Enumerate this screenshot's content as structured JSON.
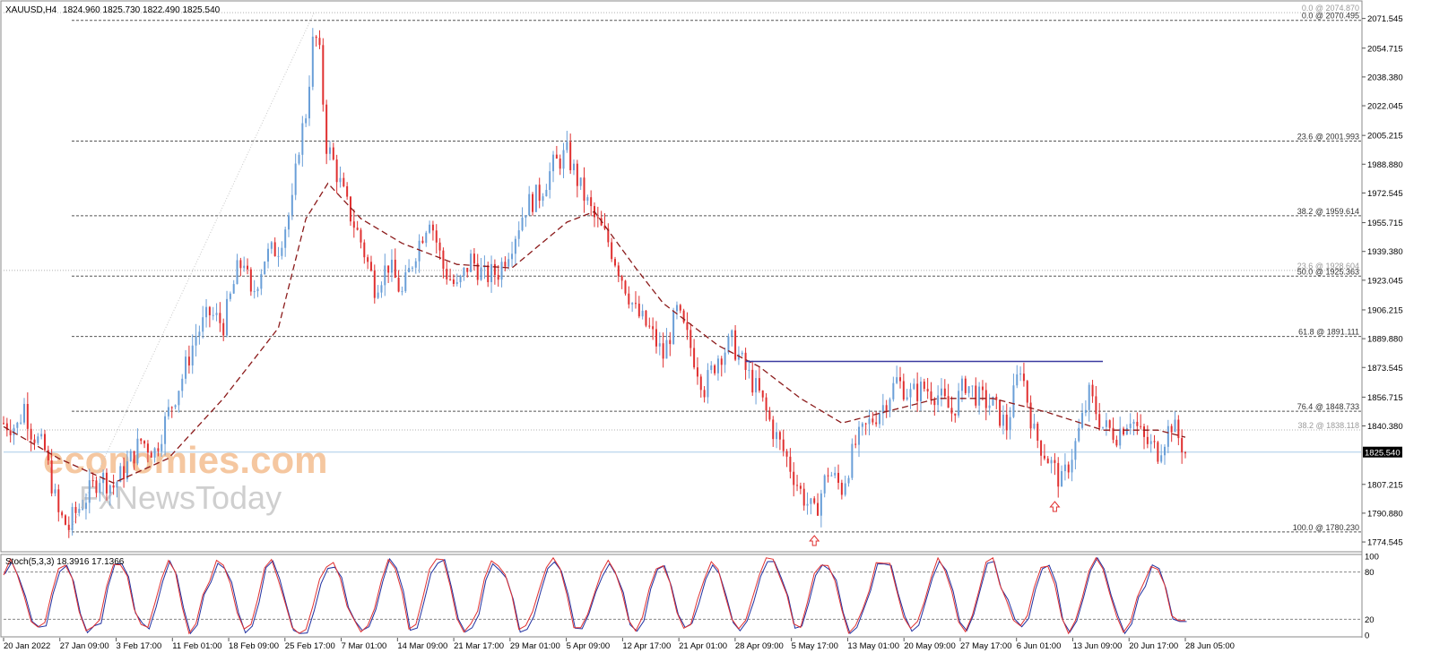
{
  "header": {
    "symbol": "XAUUSD,H4",
    "ohlc": "1824.960 1825.730 1822.490 1825.540"
  },
  "watermark": {
    "line1": "economies.com",
    "line2": "FxNewsToday"
  },
  "price_axis": {
    "ticks": [
      "2071.545",
      "2054.715",
      "2038.380",
      "2022.045",
      "2005.215",
      "1988.880",
      "1972.545",
      "1955.715",
      "1939.380",
      "1923.045",
      "1906.215",
      "1889.880",
      "1873.545",
      "1856.715",
      "1840.380",
      "1825.540",
      "1807.215",
      "1790.880",
      "1774.545"
    ],
    "current_price_label": "1825.540"
  },
  "fib_labels": [
    {
      "text": "0.0 @ 2074.870",
      "faded": true
    },
    {
      "text": "0.0 @ 2070.495",
      "faded": false
    },
    {
      "text": "23.6 @ 2001.993",
      "faded": false
    },
    {
      "text": "38.2 @ 1959.614",
      "faded": false
    },
    {
      "text": "23.6 @ 1928.604",
      "faded": true
    },
    {
      "text": "50.0 @ 1925.363",
      "faded": false
    },
    {
      "text": "61.8 @ 1891.111",
      "faded": false
    },
    {
      "text": "76.4 @ 1848.733",
      "faded": false
    },
    {
      "text": "38.2 @ 1838.118",
      "faded": true
    },
    {
      "text": "100.0 @ 1780.230",
      "faded": false
    }
  ],
  "indicator": {
    "label": "Stoch(5,3,3) 18.3916 17.1366",
    "ticks": [
      "100",
      "80",
      "20",
      "0"
    ]
  },
  "time_axis": {
    "labels": [
      "20 Jan 2022",
      "27 Jan 09:00",
      "3 Feb 17:00",
      "11 Feb 01:00",
      "18 Feb 09:00",
      "25 Feb 17:00",
      "7 Mar 01:00",
      "14 Mar 09:00",
      "21 Mar 17:00",
      "29 Mar 01:00",
      "5 Apr 09:00",
      "12 Apr 17:00",
      "21 Apr 01:00",
      "28 Apr 09:00",
      "5 May 17:00",
      "13 May 01:00",
      "20 May 09:00",
      "27 May 17:00",
      "6 Jun 01:00",
      "13 Jun 09:00",
      "20 Jun 17:00",
      "28 Jun 05:00"
    ]
  },
  "colors": {
    "bull_candle": "#6a9fd8",
    "bear_candle": "#e03030",
    "moving_average": "#8b1a1a",
    "resistance_line": "#3a3aa0",
    "stoch_main": "#e03030",
    "stoch_signal": "#2030a0",
    "fib_line": "#555555",
    "current_price_line": "#a8cce8",
    "arrow": "#e03030",
    "watermark_orange": "#f5c7a0",
    "watermark_grey": "#cfcfcf"
  },
  "chart_data": {
    "type": "candlestick",
    "symbol": "XAUUSD",
    "timeframe": "H4",
    "ylim": [
      1770,
      2080
    ],
    "x_labels": [
      "20 Jan 2022",
      "27 Jan 09:00",
      "3 Feb 17:00",
      "11 Feb 01:00",
      "18 Feb 09:00",
      "25 Feb 17:00",
      "7 Mar 01:00",
      "14 Mar 09:00",
      "21 Mar 17:00",
      "29 Mar 01:00",
      "5 Apr 09:00",
      "12 Apr 17:00",
      "21 Apr 01:00",
      "28 Apr 09:00",
      "5 May 17:00",
      "13 May 01:00",
      "20 May 09:00",
      "27 May 17:00",
      "6 Jun 01:00",
      "13 Jun 09:00",
      "20 Jun 17:00",
      "28 Jun 05:00"
    ],
    "price_path": [
      [
        0,
        1842
      ],
      [
        1,
        1840
      ],
      [
        1.5,
        1852
      ],
      [
        2,
        1838
      ],
      [
        3,
        1826
      ],
      [
        4,
        1790
      ],
      [
        4.8,
        1782
      ],
      [
        5,
        1788
      ],
      [
        6,
        1800
      ],
      [
        7,
        1812
      ],
      [
        8,
        1806
      ],
      [
        9,
        1818
      ],
      [
        10,
        1832
      ],
      [
        11,
        1826
      ],
      [
        12,
        1848
      ],
      [
        13,
        1868
      ],
      [
        14,
        1892
      ],
      [
        15,
        1904
      ],
      [
        16,
        1898
      ],
      [
        17,
        1928
      ],
      [
        17.5,
        1935
      ],
      [
        18,
        1912
      ],
      [
        19,
        1936
      ],
      [
        20,
        1942
      ],
      [
        21,
        1966
      ],
      [
        21.5,
        2000
      ],
      [
        22,
        2018
      ],
      [
        22.6,
        2065
      ],
      [
        23,
        2050
      ],
      [
        23.5,
        2000
      ],
      [
        24,
        1990
      ],
      [
        25,
        1965
      ],
      [
        26,
        1945
      ],
      [
        27,
        1920
      ],
      [
        28,
        1932
      ],
      [
        29,
        1915
      ],
      [
        30,
        1940
      ],
      [
        31,
        1960
      ],
      [
        32,
        1930
      ],
      [
        33,
        1918
      ],
      [
        34,
        1935
      ],
      [
        35,
        1925
      ],
      [
        36,
        1928
      ],
      [
        37,
        1945
      ],
      [
        38,
        1965
      ],
      [
        39,
        1972
      ],
      [
        40,
        1988
      ],
      [
        41,
        1995
      ],
      [
        42,
        1975
      ],
      [
        43,
        1958
      ],
      [
        44,
        1945
      ],
      [
        45,
        1925
      ],
      [
        46,
        1905
      ],
      [
        47,
        1895
      ],
      [
        48,
        1880
      ],
      [
        49,
        1905
      ],
      [
        50,
        1885
      ],
      [
        51,
        1862
      ],
      [
        52,
        1880
      ],
      [
        53,
        1888
      ],
      [
        54,
        1872
      ],
      [
        55,
        1858
      ],
      [
        56,
        1838
      ],
      [
        57,
        1822
      ],
      [
        58,
        1803
      ],
      [
        59,
        1790
      ],
      [
        60,
        1815
      ],
      [
        61,
        1805
      ],
      [
        62,
        1830
      ],
      [
        63,
        1842
      ],
      [
        64,
        1852
      ],
      [
        65,
        1866
      ],
      [
        66,
        1858
      ],
      [
        67,
        1862
      ],
      [
        68,
        1858
      ],
      [
        69,
        1848
      ],
      [
        70,
        1865
      ],
      [
        71,
        1856
      ],
      [
        72,
        1852
      ],
      [
        73,
        1840
      ],
      [
        74,
        1875
      ],
      [
        75,
        1836
      ],
      [
        76,
        1822
      ],
      [
        77,
        1808
      ],
      [
        78,
        1830
      ],
      [
        79,
        1858
      ],
      [
        80,
        1840
      ],
      [
        81,
        1836
      ],
      [
        82,
        1846
      ],
      [
        83,
        1832
      ],
      [
        84,
        1826
      ],
      [
        85,
        1842
      ],
      [
        86,
        1825.54
      ]
    ],
    "moving_average_path": [
      [
        0,
        1840
      ],
      [
        4,
        1822
      ],
      [
        8,
        1808
      ],
      [
        12,
        1822
      ],
      [
        16,
        1856
      ],
      [
        20,
        1896
      ],
      [
        22,
        1958
      ],
      [
        23.6,
        1978
      ],
      [
        26,
        1958
      ],
      [
        29,
        1944
      ],
      [
        33,
        1932
      ],
      [
        37,
        1930
      ],
      [
        41,
        1956
      ],
      [
        43,
        1962
      ],
      [
        46,
        1930
      ],
      [
        48,
        1910
      ],
      [
        52,
        1886
      ],
      [
        55,
        1874
      ],
      [
        58,
        1856
      ],
      [
        61,
        1842
      ],
      [
        64,
        1848
      ],
      [
        68,
        1856
      ],
      [
        72,
        1856
      ],
      [
        76,
        1848
      ],
      [
        80,
        1838
      ],
      [
        84,
        1838
      ],
      [
        86,
        1834
      ]
    ],
    "horizontal_levels": [
      {
        "label": "0.0 @ 2074.870",
        "value": 2074.87,
        "style": "dotted",
        "faded": true
      },
      {
        "label": "0.0 @ 2070.495",
        "value": 2070.495,
        "style": "dashed"
      },
      {
        "label": "23.6 @ 2001.993",
        "value": 2001.993,
        "style": "dashed"
      },
      {
        "label": "38.2 @ 1959.614",
        "value": 1959.614,
        "style": "dashed"
      },
      {
        "label": "23.6 @ 1928.604",
        "value": 1928.604,
        "style": "dotted",
        "faded": true
      },
      {
        "label": "50.0 @ 1925.363",
        "value": 1925.363,
        "style": "dashed"
      },
      {
        "label": "61.8 @ 1891.111",
        "value": 1891.111,
        "style": "dashed"
      },
      {
        "label": "76.4 @ 1848.733",
        "value": 1848.733,
        "style": "dashed"
      },
      {
        "label": "38.2 @ 1838.118",
        "value": 1838.118,
        "style": "dotted",
        "faded": true
      },
      {
        "label": "100.0 @ 1780.230",
        "value": 1780.23,
        "style": "dashed"
      }
    ],
    "resistance_line": {
      "value": 1877,
      "x_from": 54,
      "x_to": 80
    },
    "current_price": 1825.54,
    "up_arrows_at_x": [
      59,
      76.5
    ],
    "stochastic": {
      "name": "Stoch(5,3,3)",
      "main": 18.3916,
      "signal": 17.1366,
      "levels": [
        80,
        20
      ],
      "ylim": [
        0,
        100
      ]
    }
  }
}
